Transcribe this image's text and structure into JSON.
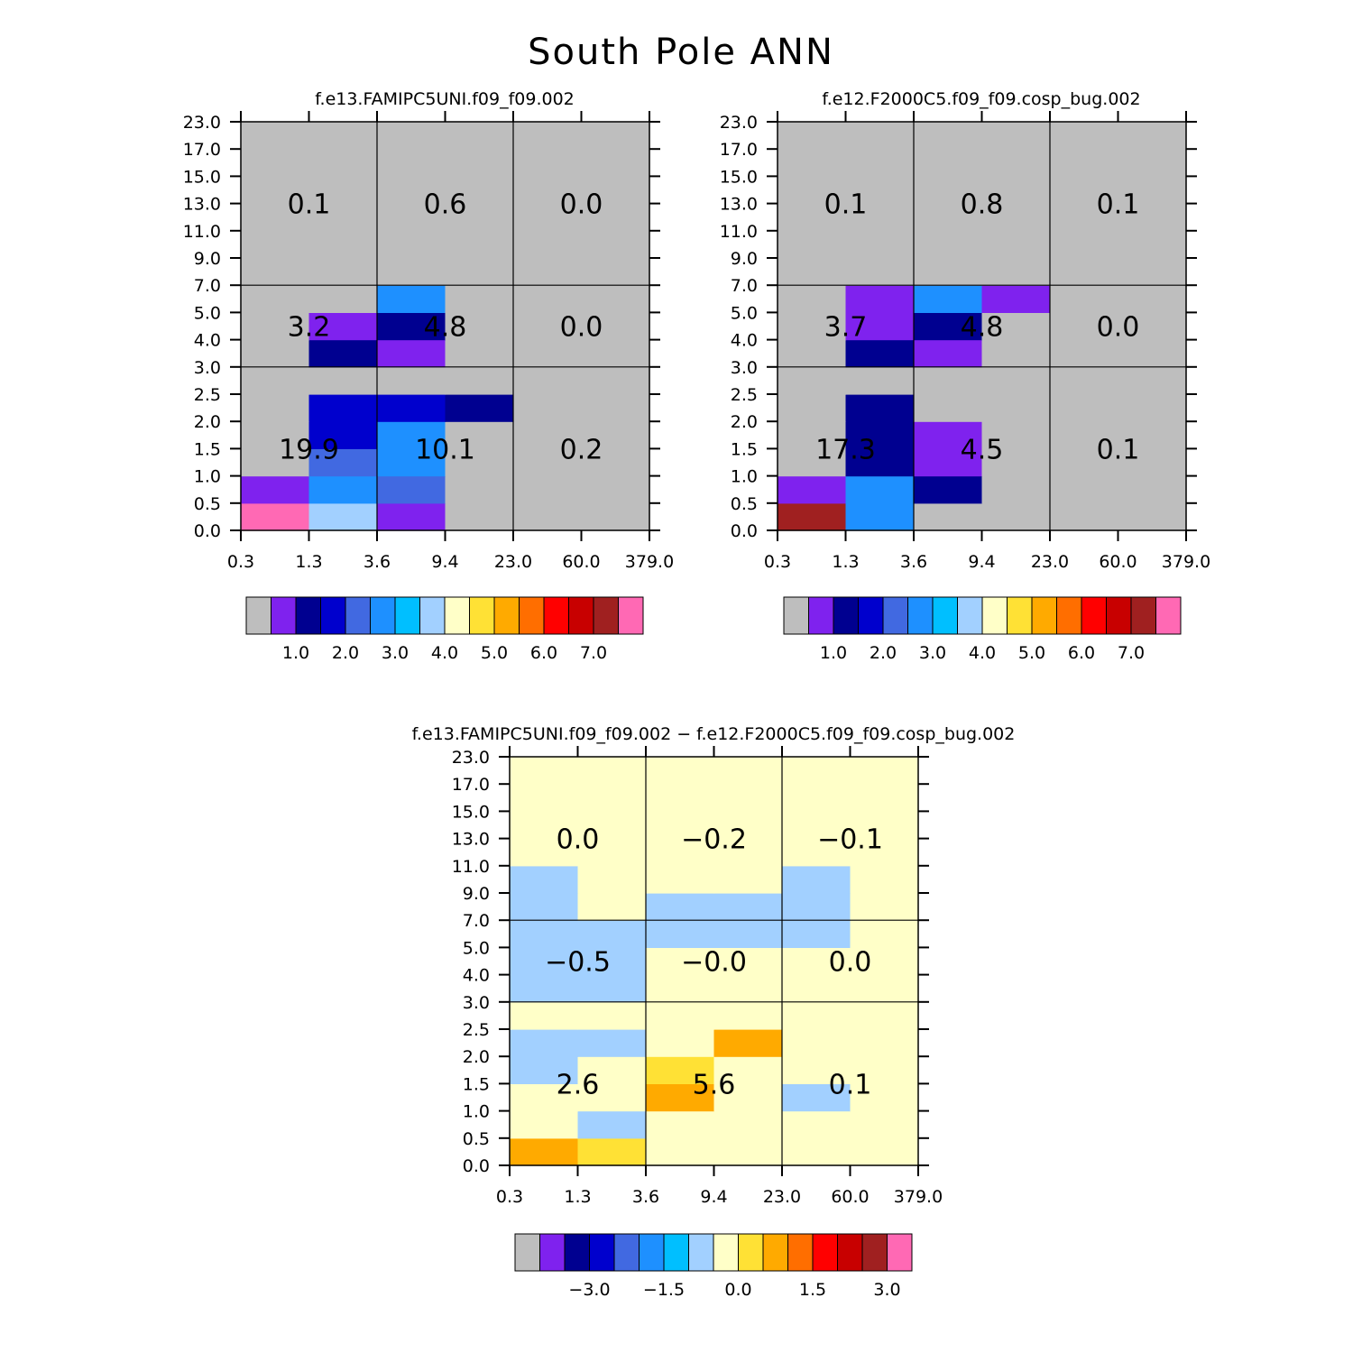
{
  "title": "South Pole ANN",
  "chart_data": [
    {
      "type": "heatmap",
      "id": "p1",
      "title": "f.e13.FAMIPC5UNI.f09_f09.002",
      "x_tick_labels": [
        "0.3",
        "1.3",
        "3.6",
        "9.4",
        "23.0",
        "60.0",
        "379.0"
      ],
      "y_tick_labels": [
        "0.0",
        "0.5",
        "1.0",
        "1.5",
        "2.0",
        "2.5",
        "3.0",
        "4.0",
        "5.0",
        "7.0",
        "9.0",
        "11.0",
        "13.0",
        "15.0",
        "17.0",
        "23.0"
      ],
      "cell_color_index": [
        [
          15,
          7,
          1,
          0,
          0,
          0
        ],
        [
          1,
          5,
          4,
          0,
          0,
          0
        ],
        [
          0,
          4,
          5,
          0,
          0,
          0
        ],
        [
          0,
          3,
          5,
          0,
          0,
          0
        ],
        [
          0,
          3,
          3,
          2,
          0,
          0
        ],
        [
          0,
          0,
          0,
          0,
          0,
          0
        ],
        [
          0,
          2,
          1,
          0,
          0,
          0
        ],
        [
          0,
          1,
          2,
          0,
          0,
          0
        ],
        [
          0,
          0,
          5,
          0,
          0,
          0
        ],
        [
          0,
          0,
          0,
          0,
          0,
          0
        ],
        [
          0,
          0,
          0,
          0,
          0,
          0
        ],
        [
          0,
          0,
          0,
          0,
          0,
          0
        ],
        [
          0,
          0,
          0,
          0,
          0,
          0
        ],
        [
          0,
          0,
          0,
          0,
          0,
          0
        ],
        [
          0,
          0,
          0,
          0,
          0,
          0
        ]
      ],
      "group_labels": [
        [
          "19.9",
          "10.1",
          "0.2"
        ],
        [
          "3.2",
          "4.8",
          "0.0"
        ],
        [
          "0.1",
          "0.6",
          "0.0"
        ]
      ],
      "colorbar_labels": [
        "1.0",
        "2.0",
        "3.0",
        "4.0",
        "5.0",
        "6.0",
        "7.0"
      ]
    },
    {
      "type": "heatmap",
      "id": "p2",
      "title": "f.e12.F2000C5.f09_f09.cosp_bug.002",
      "x_tick_labels": [
        "0.3",
        "1.3",
        "3.6",
        "9.4",
        "23.0",
        "60.0",
        "379.0"
      ],
      "y_tick_labels": [
        "0.0",
        "0.5",
        "1.0",
        "1.5",
        "2.0",
        "2.5",
        "3.0",
        "4.0",
        "5.0",
        "7.0",
        "9.0",
        "11.0",
        "13.0",
        "15.0",
        "17.0",
        "23.0"
      ],
      "cell_color_index": [
        [
          14,
          5,
          0,
          0,
          0,
          0
        ],
        [
          1,
          5,
          2,
          0,
          0,
          0
        ],
        [
          0,
          2,
          1,
          0,
          0,
          0
        ],
        [
          0,
          2,
          1,
          0,
          0,
          0
        ],
        [
          0,
          2,
          0,
          0,
          0,
          0
        ],
        [
          0,
          0,
          0,
          0,
          0,
          0
        ],
        [
          0,
          2,
          1,
          0,
          0,
          0
        ],
        [
          0,
          1,
          2,
          0,
          0,
          0
        ],
        [
          0,
          1,
          5,
          1,
          0,
          0
        ],
        [
          0,
          0,
          0,
          0,
          0,
          0
        ],
        [
          0,
          0,
          0,
          0,
          0,
          0
        ],
        [
          0,
          0,
          0,
          0,
          0,
          0
        ],
        [
          0,
          0,
          0,
          0,
          0,
          0
        ],
        [
          0,
          0,
          0,
          0,
          0,
          0
        ],
        [
          0,
          0,
          0,
          0,
          0,
          0
        ]
      ],
      "group_labels": [
        [
          "17.3",
          "4.5",
          "0.1"
        ],
        [
          "3.7",
          "4.8",
          "0.0"
        ],
        [
          "0.1",
          "0.8",
          "0.1"
        ]
      ],
      "colorbar_labels": [
        "1.0",
        "2.0",
        "3.0",
        "4.0",
        "5.0",
        "6.0",
        "7.0"
      ]
    },
    {
      "type": "heatmap",
      "id": "p3",
      "title": "f.e13.FAMIPC5UNI.f09_f09.002 − f.e12.F2000C5.f09_f09.cosp_bug.002",
      "x_tick_labels": [
        "0.3",
        "1.3",
        "3.6",
        "9.4",
        "23.0",
        "60.0",
        "379.0"
      ],
      "y_tick_labels": [
        "0.0",
        "0.5",
        "1.0",
        "1.5",
        "2.0",
        "2.5",
        "3.0",
        "4.0",
        "5.0",
        "7.0",
        "9.0",
        "11.0",
        "13.0",
        "15.0",
        "17.0",
        "23.0"
      ],
      "cell_color_index": [
        [
          10,
          9,
          8,
          8,
          8,
          8
        ],
        [
          8,
          7,
          8,
          8,
          8,
          8
        ],
        [
          8,
          8,
          10,
          8,
          7,
          8
        ],
        [
          7,
          8,
          9,
          8,
          8,
          8
        ],
        [
          7,
          7,
          8,
          10,
          8,
          8
        ],
        [
          8,
          8,
          8,
          8,
          8,
          8
        ],
        [
          7,
          7,
          8,
          8,
          8,
          8
        ],
        [
          7,
          7,
          8,
          8,
          8,
          8
        ],
        [
          7,
          7,
          7,
          7,
          7,
          8
        ],
        [
          7,
          8,
          7,
          7,
          7,
          8
        ],
        [
          7,
          8,
          8,
          8,
          7,
          8
        ],
        [
          8,
          8,
          8,
          8,
          8,
          8
        ],
        [
          8,
          8,
          8,
          8,
          8,
          8
        ],
        [
          8,
          8,
          8,
          8,
          8,
          8
        ],
        [
          8,
          8,
          8,
          8,
          8,
          8
        ]
      ],
      "group_labels": [
        [
          "2.6",
          "5.6",
          "0.1"
        ],
        [
          "−0.5",
          "−0.0",
          "0.0"
        ],
        [
          "0.0",
          "−0.2",
          "−0.1"
        ]
      ],
      "colorbar_labels": [
        "−3.0",
        "−1.5",
        "0.0",
        "1.5",
        "3.0"
      ]
    }
  ],
  "palette": [
    "#bebebe",
    "#7f22ee",
    "#000090",
    "#0000cd",
    "#4169e1",
    "#1e90ff",
    "#00bfff",
    "#a2d0ff",
    "#ffffc8",
    "#ffe135",
    "#ffaa00",
    "#ff6e00",
    "#ff0000",
    "#c80000",
    "#a02020",
    "#ff69b4"
  ]
}
